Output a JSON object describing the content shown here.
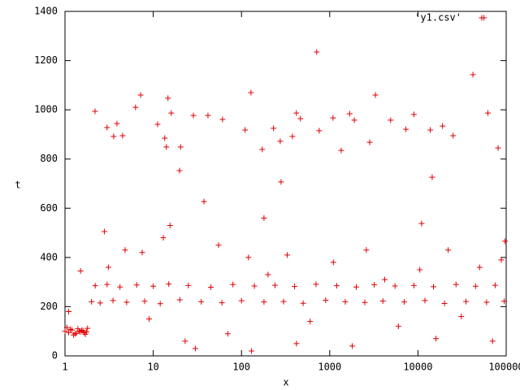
{
  "chart_data": {
    "type": "scatter",
    "xlabel": "x",
    "ylabel": "t",
    "xscale": "log",
    "xlim": [
      1,
      100000
    ],
    "xticks": [
      1,
      10,
      100,
      1000,
      10000,
      100000
    ],
    "ylim": [
      0,
      1400
    ],
    "yticks": [
      0,
      200,
      400,
      600,
      800,
      1000,
      1200,
      1400
    ],
    "legend": "upper right",
    "series": [
      {
        "name": "'y1.csv'",
        "color": "#e00000",
        "x": [
          2.19,
          3.0,
          3.56,
          3.88,
          4.5,
          6.3,
          7.2,
          11.2,
          13.5,
          14.7,
          14.1,
          16,
          19.9,
          20.4,
          28.5,
          37.6,
          41.7,
          61,
          110,
          128,
          172,
          231,
          281,
          275,
          378,
          419,
          465,
          712,
          760,
          1090,
          1350,
          1680,
          1900,
          2840,
          3300,
          4900,
          7300,
          9000,
          11000,
          13800,
          14500,
          19000,
          25000,
          42000,
          56000,
          62000,
          81000,
          97000,
          1.0,
          1.1,
          1.2,
          1.3,
          1.4,
          1.5,
          1.6,
          1.7,
          1.8,
          1.05,
          1.25,
          1.45,
          1.65,
          1.15,
          1.35,
          1.55,
          1.75,
          2,
          2.5,
          3.5,
          5,
          8,
          12,
          20,
          35,
          60,
          100,
          180,
          300,
          500,
          900,
          1500,
          2500,
          4000,
          7000,
          12000,
          20000,
          35000,
          60000,
          95000,
          2.2,
          3,
          4.2,
          6.5,
          10,
          15,
          25,
          45,
          80,
          140,
          240,
          400,
          700,
          1200,
          2000,
          3200,
          5500,
          9000,
          15000,
          27000,
          45000,
          75000,
          1.1,
          1.5,
          2.8,
          3.1,
          4.8,
          7.5,
          9,
          13,
          15.5,
          23,
          30,
          55,
          70,
          120,
          130,
          180,
          200,
          330,
          420,
          600,
          1100,
          1800,
          2600,
          4200,
          6000,
          10500,
          16000,
          22000,
          31000,
          50000,
          70000,
          88000
        ],
        "values": [
          994,
          928,
          892,
          944,
          895,
          1010,
          1060,
          941,
          885,
          1047,
          849,
          987,
          753,
          849,
          977,
          627,
          977,
          961,
          918,
          1070,
          839,
          925,
          707,
          872,
          892,
          987,
          964,
          1235,
          915,
          967,
          835,
          984,
          958,
          868,
          1060,
          958,
          921,
          981,
          538,
          918,
          726,
          934,
          895,
          1143,
          1374,
          987,
          845,
          466,
          100,
          95,
          105,
          90,
          110,
          98,
          102,
          88,
          112,
          115,
          85,
          100,
          95,
          108,
          92,
          104,
          97,
          220,
          215,
          225,
          218,
          222,
          212,
          228,
          220,
          216,
          224,
          219,
          221,
          214,
          226,
          220,
          217,
          223,
          219,
          225,
          213,
          221,
          218,
          222,
          285,
          290,
          280,
          288,
          283,
          292,
          286,
          279,
          290,
          284,
          287,
          282,
          291,
          285,
          280,
          289,
          284,
          286,
          281,
          290,
          283,
          287,
          180,
          345,
          505,
          360,
          430,
          420,
          150,
          480,
          530,
          60,
          30,
          450,
          90,
          400,
          20,
          560,
          330,
          410,
          50,
          140,
          380,
          40,
          430,
          310,
          120,
          350,
          70,
          430,
          160,
          360,
          60,
          390
        ]
      }
    ]
  }
}
